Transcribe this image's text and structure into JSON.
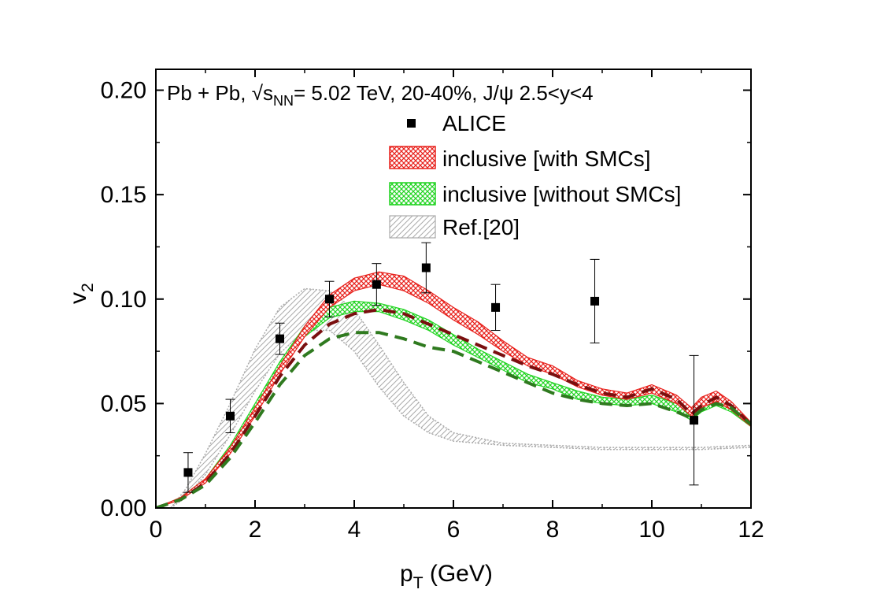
{
  "chart_data": {
    "type": "line",
    "annotation": {
      "prefix": "Pb + Pb, ",
      "sqrt": "√",
      "s": "s",
      "sub": "NN",
      "suffix": "= 5.02 TeV, 20-40%, J/ψ 2.5<y<4"
    },
    "xlabel": {
      "main": "p",
      "sub": "T",
      "rest": " (GeV)"
    },
    "ylabel": {
      "main": "v",
      "sub": "2"
    },
    "xlim": [
      0,
      12
    ],
    "ylim": [
      0,
      0.21
    ],
    "x_ticks": [
      "0",
      "2",
      "4",
      "6",
      "8",
      "10",
      "12"
    ],
    "y_ticks": [
      "0.00",
      "0.05",
      "0.10",
      "0.15",
      "0.20"
    ],
    "legend": {
      "position": "top-right",
      "alice": "ALICE",
      "with_smc": "inclusive [with SMCs]",
      "without_smc": "inclusive [without SMCs]",
      "ref": "Ref.[20]"
    },
    "colors": {
      "red": "#e8201b",
      "green": "#22d422",
      "darkred": "#7a0f0f",
      "darkgreen": "#2f7a1f",
      "gray": "#aaaaaa"
    },
    "alice": [
      {
        "x": 0.65,
        "y": 0.017,
        "err": 0.0095
      },
      {
        "x": 1.5,
        "y": 0.044,
        "err": 0.008
      },
      {
        "x": 2.5,
        "y": 0.081,
        "err": 0.0075
      },
      {
        "x": 3.5,
        "y": 0.1,
        "err": 0.0085
      },
      {
        "x": 4.45,
        "y": 0.107,
        "err": 0.01
      },
      {
        "x": 5.45,
        "y": 0.115,
        "err": 0.012
      },
      {
        "x": 6.85,
        "y": 0.096,
        "err": 0.011
      },
      {
        "x": 8.85,
        "y": 0.099,
        "err": 0.02
      },
      {
        "x": 10.85,
        "y": 0.042,
        "err": 0.031
      }
    ],
    "with_smc_band": {
      "x": [
        0,
        0.5,
        1.0,
        1.5,
        2.0,
        2.5,
        3.0,
        3.5,
        4.0,
        4.5,
        5.0,
        5.5,
        6.0,
        6.5,
        7.0,
        7.5,
        8.0,
        8.5,
        9.0,
        9.5,
        10.0,
        10.5,
        10.8,
        11.0,
        11.3,
        11.6,
        12.0
      ],
      "low": [
        0,
        0.004,
        0.012,
        0.026,
        0.044,
        0.064,
        0.082,
        0.096,
        0.104,
        0.107,
        0.104,
        0.098,
        0.09,
        0.083,
        0.075,
        0.068,
        0.064,
        0.058,
        0.054,
        0.052,
        0.055,
        0.05,
        0.044,
        0.048,
        0.051,
        0.047,
        0.039
      ],
      "high": [
        0,
        0.005,
        0.014,
        0.029,
        0.048,
        0.068,
        0.087,
        0.102,
        0.11,
        0.113,
        0.111,
        0.104,
        0.096,
        0.089,
        0.08,
        0.072,
        0.068,
        0.061,
        0.057,
        0.055,
        0.059,
        0.054,
        0.048,
        0.053,
        0.056,
        0.051,
        0.041
      ]
    },
    "without_smc_band": {
      "x": [
        0,
        0.5,
        1.0,
        1.5,
        2.0,
        2.5,
        3.0,
        3.5,
        4.0,
        4.5,
        5.0,
        5.5,
        6.0,
        6.5,
        7.0,
        7.5,
        8.0,
        8.5,
        9.0,
        9.5,
        10.0,
        10.5,
        10.8,
        11.0,
        11.3,
        11.6,
        12.0
      ],
      "low": [
        0,
        0.004,
        0.012,
        0.027,
        0.046,
        0.066,
        0.082,
        0.091,
        0.094,
        0.094,
        0.09,
        0.085,
        0.078,
        0.072,
        0.066,
        0.06,
        0.057,
        0.052,
        0.05,
        0.049,
        0.05,
        0.046,
        0.042,
        0.046,
        0.049,
        0.046,
        0.039
      ],
      "high": [
        0,
        0.005,
        0.014,
        0.03,
        0.05,
        0.07,
        0.087,
        0.096,
        0.099,
        0.098,
        0.095,
        0.09,
        0.083,
        0.076,
        0.07,
        0.064,
        0.06,
        0.056,
        0.053,
        0.052,
        0.054,
        0.05,
        0.046,
        0.05,
        0.053,
        0.05,
        0.041
      ]
    },
    "ref_band": {
      "x": [
        0.3,
        0.6,
        1.0,
        1.5,
        2.0,
        2.5,
        3.0,
        3.5,
        4.0,
        4.5,
        5.0,
        5.5,
        6.0,
        7.0,
        8.0,
        9.0,
        10.0,
        11.0,
        12.0
      ],
      "low": [
        0.0,
        0.005,
        0.016,
        0.035,
        0.056,
        0.074,
        0.085,
        0.085,
        0.075,
        0.058,
        0.044,
        0.036,
        0.032,
        0.03,
        0.029,
        0.028,
        0.028,
        0.028,
        0.029
      ],
      "high": [
        0.0,
        0.009,
        0.026,
        0.05,
        0.076,
        0.096,
        0.105,
        0.104,
        0.095,
        0.078,
        0.06,
        0.044,
        0.036,
        0.031,
        0.03,
        0.029,
        0.029,
        0.029,
        0.03
      ]
    },
    "darkred_dashed": {
      "x": [
        0,
        0.5,
        1.0,
        1.5,
        2.0,
        2.5,
        3.0,
        3.5,
        4.0,
        4.5,
        5.0,
        5.5,
        6.0,
        6.5,
        7.0,
        7.5,
        8.0,
        8.5,
        9.0,
        9.5,
        10.0,
        10.5,
        10.8,
        11.0,
        11.3,
        11.6,
        12.0
      ],
      "y": [
        0,
        0.004,
        0.012,
        0.026,
        0.044,
        0.063,
        0.078,
        0.088,
        0.093,
        0.095,
        0.093,
        0.088,
        0.083,
        0.078,
        0.073,
        0.068,
        0.064,
        0.059,
        0.055,
        0.053,
        0.057,
        0.052,
        0.045,
        0.049,
        0.053,
        0.049,
        0.04
      ]
    },
    "darkgreen_dashed": {
      "x": [
        0,
        0.5,
        1.0,
        1.5,
        2.0,
        2.5,
        3.0,
        3.5,
        4.0,
        4.5,
        5.0,
        5.5,
        6.0,
        6.5,
        7.0,
        7.5,
        8.0,
        8.5,
        9.0,
        9.5,
        10.0,
        10.5,
        10.8,
        11.0,
        11.3,
        11.6,
        12.0
      ],
      "y": [
        0,
        0.004,
        0.011,
        0.024,
        0.041,
        0.059,
        0.073,
        0.081,
        0.084,
        0.084,
        0.081,
        0.077,
        0.075,
        0.07,
        0.065,
        0.06,
        0.055,
        0.052,
        0.05,
        0.049,
        0.05,
        0.046,
        0.043,
        0.047,
        0.05,
        0.048,
        0.04
      ]
    }
  }
}
